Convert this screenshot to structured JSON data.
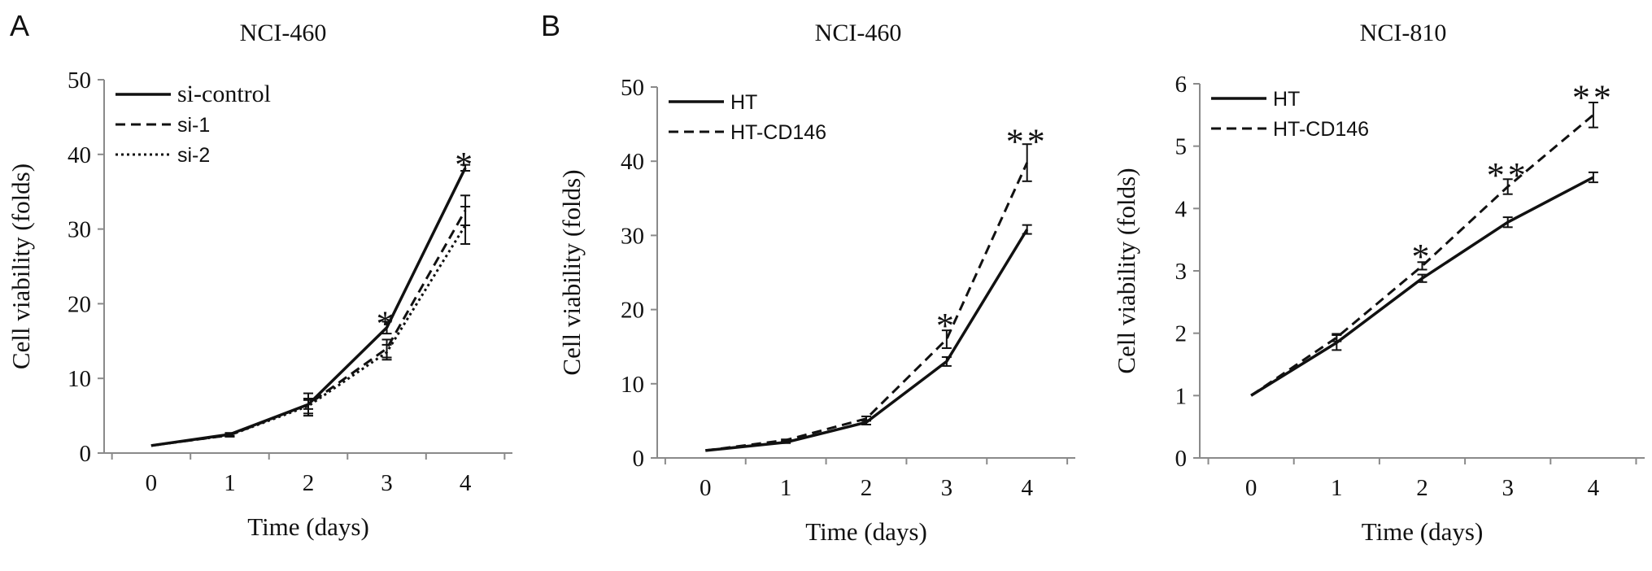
{
  "figure": {
    "panels": [
      {
        "letter": "A"
      },
      {
        "letter": "B"
      },
      {
        "letter": ""
      }
    ]
  },
  "chart_data": [
    {
      "type": "line",
      "title": "NCI-460",
      "xlabel": "Time (days)",
      "ylabel": "Cell viability (folds)",
      "x": [
        0,
        1,
        2,
        3,
        4
      ],
      "xlim": [
        -0.6,
        4.6
      ],
      "ylim": [
        0,
        50
      ],
      "yticks": [
        0,
        10,
        20,
        30,
        40,
        50
      ],
      "grid": false,
      "legend_position": "top-left",
      "series": [
        {
          "name": "si-control",
          "style": "solid",
          "values": [
            1,
            2.5,
            6.5,
            16.8,
            38.2
          ],
          "errors": [
            0,
            0.2,
            0.6,
            0.8,
            0.4
          ]
        },
        {
          "name": "si-1",
          "style": "dashed",
          "values": [
            1,
            2.4,
            6.5,
            14.0,
            32.5
          ],
          "errors": [
            0,
            0.2,
            1.5,
            1.2,
            2.0
          ]
        },
        {
          "name": "si-2",
          "style": "dotted",
          "values": [
            1,
            2.4,
            6.3,
            13.5,
            30.5
          ],
          "errors": [
            0,
            0.2,
            1.0,
            1.0,
            2.5
          ]
        }
      ],
      "annotations": [
        {
          "x": 3,
          "y": 17.5,
          "text": "*"
        },
        {
          "x": 4,
          "y": 38.8,
          "text": "*"
        }
      ]
    },
    {
      "type": "line",
      "title": "NCI-460",
      "xlabel": "Time (days)",
      "ylabel": "Cell viability (folds)",
      "x": [
        0,
        1,
        2,
        3,
        4
      ],
      "xlim": [
        -0.6,
        4.6
      ],
      "ylim": [
        0,
        50
      ],
      "yticks": [
        0,
        10,
        20,
        30,
        40,
        50
      ],
      "grid": false,
      "legend_position": "top-left",
      "series": [
        {
          "name": "HT",
          "style": "solid",
          "values": [
            1,
            2.1,
            4.8,
            13.0,
            30.8
          ],
          "errors": [
            0,
            0.1,
            0.3,
            0.6,
            0.6
          ]
        },
        {
          "name": "HT-CD146",
          "style": "dashed",
          "values": [
            1,
            2.4,
            5.3,
            16.0,
            39.8
          ],
          "errors": [
            0,
            0.1,
            0.3,
            1.2,
            2.5
          ]
        }
      ],
      "annotations": [
        {
          "x": 3,
          "y": 18.0,
          "text": "*"
        },
        {
          "x": 4,
          "y": 42.8,
          "text": "**"
        }
      ]
    },
    {
      "type": "line",
      "title": "NCI-810",
      "xlabel": "Time (days)",
      "ylabel": "Cell viability (folds)",
      "x": [
        0,
        1,
        2,
        3,
        4
      ],
      "xlim": [
        -0.6,
        4.6
      ],
      "ylim": [
        0,
        6
      ],
      "yticks": [
        0,
        1,
        2,
        3,
        4,
        5,
        6
      ],
      "grid": false,
      "legend_position": "top-left",
      "series": [
        {
          "name": "HT",
          "style": "solid",
          "values": [
            1,
            1.85,
            2.88,
            3.78,
            4.5
          ],
          "errors": [
            0,
            0.12,
            0.06,
            0.08,
            0.08
          ]
        },
        {
          "name": "HT-CD146",
          "style": "dashed",
          "values": [
            1,
            1.93,
            3.08,
            4.35,
            5.5
          ],
          "errors": [
            0,
            0.06,
            0.06,
            0.12,
            0.2
          ]
        }
      ],
      "annotations": [
        {
          "x": 2,
          "y": 3.25,
          "text": "*"
        },
        {
          "x": 3,
          "y": 4.55,
          "text": "**"
        },
        {
          "x": 4,
          "y": 5.8,
          "text": "**"
        }
      ]
    }
  ]
}
